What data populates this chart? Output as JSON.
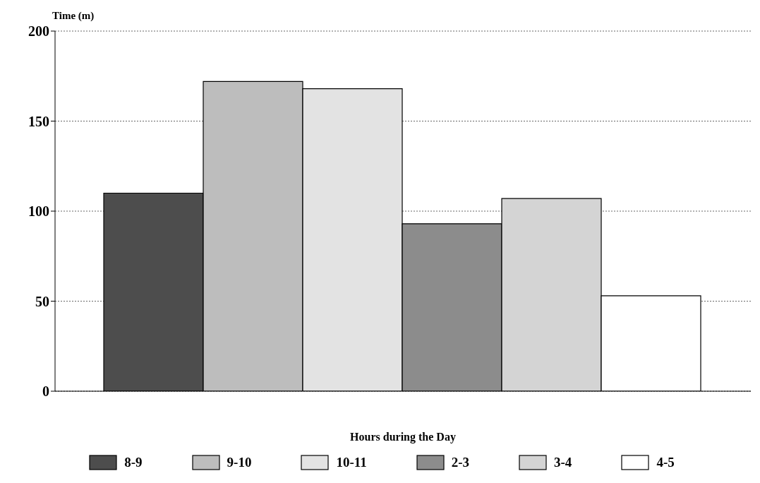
{
  "chart_data": {
    "type": "bar",
    "ylabel": "Time (m)",
    "xlabel": "Hours during the Day",
    "categories": [
      null
    ],
    "series": [
      {
        "name": "8-9",
        "color": "#4d4d4d",
        "values": [
          110
        ]
      },
      {
        "name": "9-10",
        "color": "#bdbdbd",
        "values": [
          172
        ]
      },
      {
        "name": "10-11",
        "color": "#e3e3e3",
        "values": [
          168
        ]
      },
      {
        "name": "2-3",
        "color": "#8c8c8c",
        "values": [
          93
        ]
      },
      {
        "name": "3-4",
        "color": "#d4d4d4",
        "values": [
          107
        ]
      },
      {
        "name": "4-5",
        "color": "#ffffff",
        "values": [
          53
        ]
      }
    ],
    "ylim": [
      0,
      200
    ],
    "yticks": [
      0,
      50,
      100,
      150,
      200
    ],
    "grid": "y",
    "legend": "bottom"
  }
}
